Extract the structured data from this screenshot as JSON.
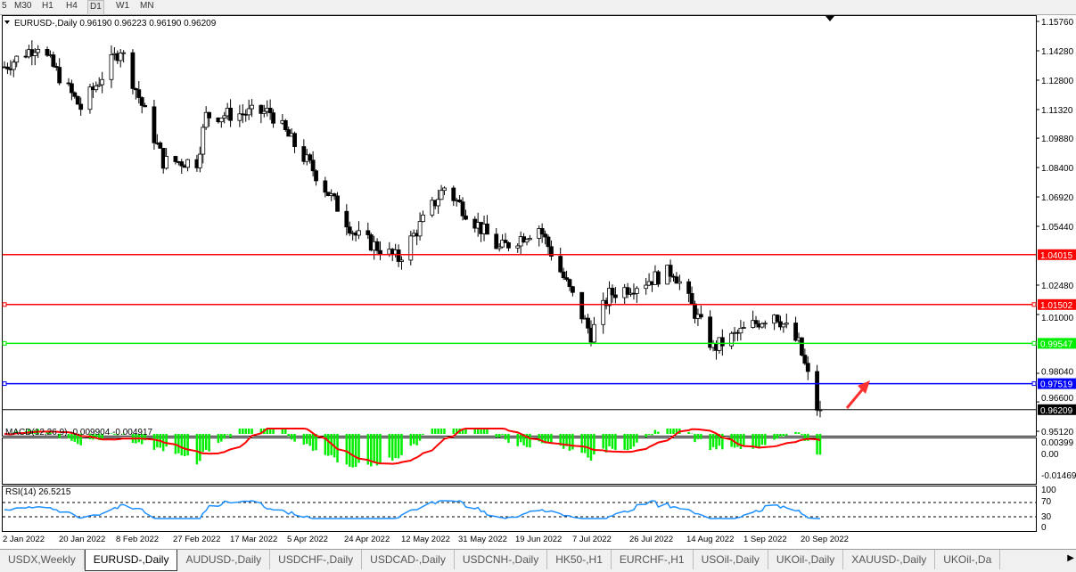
{
  "timeframes": [
    {
      "label": "5",
      "active": false
    },
    {
      "label": "M30",
      "active": false
    },
    {
      "label": "H1",
      "active": false
    },
    {
      "label": "H4",
      "active": false
    },
    {
      "label": "D1",
      "active": true
    },
    {
      "label": "W1",
      "active": false
    },
    {
      "label": "MN",
      "active": false
    }
  ],
  "header": {
    "symbol": "EURUSD-,Daily",
    "ohlc": "0.96190 0.96223 0.96190 0.96209"
  },
  "price_axis": [
    "1.15760",
    "1.14280",
    "1.12800",
    "1.11320",
    "1.09880",
    "1.08400",
    "1.06920",
    "1.05440",
    "1.02480",
    "1.01000",
    "0.98040",
    "0.96600",
    "0.95120"
  ],
  "levels": [
    {
      "value": "1.04015",
      "color": "#ff0000"
    },
    {
      "value": "1.01502",
      "color": "#ff0000"
    },
    {
      "value": "0.99547",
      "color": "#00ee00"
    },
    {
      "value": "0.97519",
      "color": "#0000ff"
    },
    {
      "value": "0.96209",
      "color": "#000000"
    }
  ],
  "macd": {
    "label": "MACD(12,26,9) -0.009904 -0.004917",
    "axis": [
      "0.00399",
      "0.00",
      "-0.014693"
    ],
    "hist_color": "#00ee00",
    "signal_color": "#ff0000"
  },
  "rsi": {
    "label": "RSI(14) 26.5215",
    "axis": [
      "100",
      "70",
      "30",
      "0"
    ],
    "color": "#1e90ff"
  },
  "time_axis": [
    "2 Jan 2022",
    "20 Jan 2022",
    "8 Feb 2022",
    "27 Feb 2022",
    "17 Mar 2022",
    "5 Apr 2022",
    "24 Apr 2022",
    "12 May 2022",
    "31 May 2022",
    "19 Jun 2022",
    "7 Jul 2022",
    "26 Jul 2022",
    "14 Aug 2022",
    "1 Sep 2022",
    "20 Sep 2022"
  ],
  "chart_data": {
    "type": "candlestick",
    "ylim": [
      0.9512,
      1.1576
    ],
    "close_anchors": [
      [
        "2022-01-03",
        1.1347
      ],
      [
        "2022-01-14",
        1.146
      ],
      [
        "2022-01-28",
        1.114
      ],
      [
        "2022-02-10",
        1.144
      ],
      [
        "2022-02-24",
        1.087
      ],
      [
        "2022-03-07",
        1.087
      ],
      [
        "2022-03-10",
        1.11
      ],
      [
        "2022-03-31",
        1.112
      ],
      [
        "2022-04-14",
        1.083
      ],
      [
        "2022-04-28",
        1.05
      ],
      [
        "2022-05-12",
        1.038
      ],
      [
        "2022-05-27",
        1.074
      ],
      [
        "2022-06-14",
        1.043
      ],
      [
        "2022-06-27",
        1.054
      ],
      [
        "2022-07-14",
        1.0
      ],
      [
        "2022-07-20",
        1.02
      ],
      [
        "2022-08-10",
        1.032
      ],
      [
        "2022-08-23",
        0.993
      ],
      [
        "2022-09-12",
        1.011
      ],
      [
        "2022-09-20",
        0.995
      ],
      [
        "2022-09-26",
        0.963
      ],
      [
        "2022-09-27",
        0.962
      ]
    ]
  },
  "tabs": [
    {
      "label": "USDX,Weekly",
      "active": false
    },
    {
      "label": "EURUSD-,Daily",
      "active": true
    },
    {
      "label": "AUDUSD-,Daily",
      "active": false
    },
    {
      "label": "USDCHF-,Daily",
      "active": false
    },
    {
      "label": "USDCAD-,Daily",
      "active": false
    },
    {
      "label": "USDCNH-,Daily",
      "active": false
    },
    {
      "label": "HK50-,H1",
      "active": false
    },
    {
      "label": "EURCHF-,H1",
      "active": false
    },
    {
      "label": "USOil-,Daily",
      "active": false
    },
    {
      "label": "UKOil-,Daily",
      "active": false
    },
    {
      "label": "XAUUSD-,Daily",
      "active": false
    },
    {
      "label": "UKOil-,Da",
      "active": false
    }
  ]
}
